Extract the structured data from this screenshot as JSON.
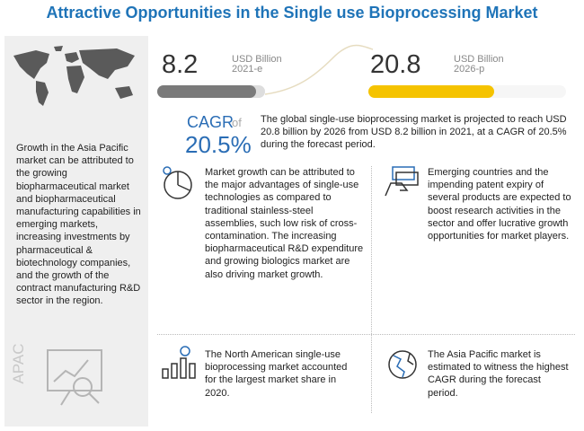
{
  "header": {
    "title": "Attractive Opportunities in the Single use Bioprocessing Market"
  },
  "sidebar": {
    "text": "Growth in the Asia Pacific market can be attributed to the growing biopharmaceutical market and biopharmaceutical manufacturing capabilities in emerging markets, increasing investments by pharmaceutical & biotechnology companies, and the growth of the contract manufacturing R&D sector in the region.",
    "region": "APAC"
  },
  "metrics": [
    {
      "value": 8.2,
      "unit": "USD Billion",
      "year": "2021-e"
    },
    {
      "value": 20.8,
      "unit": "USD Billion",
      "year": "2026-p"
    }
  ],
  "cagr": {
    "label": "CAGR",
    "of": "of",
    "value": "20.5%",
    "text": "The global single-use bioprocessing market is projected to reach USD 20.8 billion by 2026 from USD 8.2 billion in 2021, at a CAGR of 20.5% during the forecast period."
  },
  "insights": [
    "Market growth can be attributed to the major advantages of single-use technologies as compared to traditional stainless-steel assemblies, such low risk of cross-contamination. The increasing biopharmaceutical R&D expenditure and growing biologics market are also driving market growth.",
    "Emerging countries and the impending patent expiry of several products are expected to boost research activities in the sector and offer lucrative growth opportunities for market players.",
    "The North American single-use bioprocessing market accounted for the largest market share in 2020.",
    "The Asia Pacific market is estimated to witness the highest CAGR during the forecast period."
  ]
}
